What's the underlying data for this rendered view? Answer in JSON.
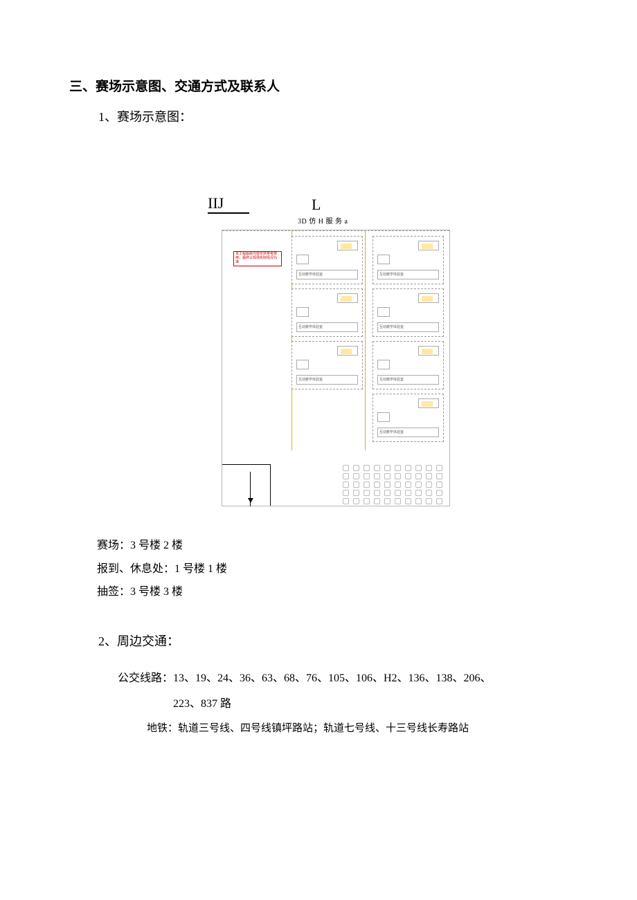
{
  "section_title": "三、赛场示意图、交通方式及联系人",
  "sub1": "1、赛场示意图：",
  "diagram": {
    "label_a": "IIJ",
    "label_b": "L",
    "sublabel": "3D 仿 H 服 务 a",
    "red_note": "本工程图纸内容仅供参考使用，最终以现场实际情况为准",
    "room_text": "互动教学体验室"
  },
  "locations": {
    "line1": "赛场：3 号楼 2 楼",
    "line2": "报到、休息处：1 号楼 1 楼",
    "line3": "抽签：3 号楼 3 楼"
  },
  "sub2": "2、周边交通：",
  "bus_label": "公交线路：13、19、24、36、63、68、76、105、106、H2、136、138、206、",
  "bus_line2": "223、837 路",
  "metro": "地铁：轨道三号线、四号线镇坪路站；轨道七号线、十三号线长寿路站"
}
